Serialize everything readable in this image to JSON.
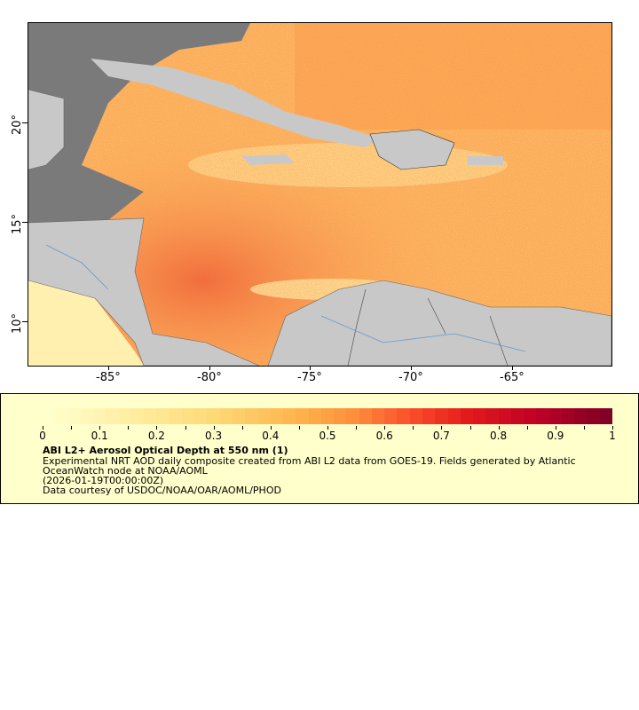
{
  "map": {
    "lon_ticks": [
      "-85°",
      "-80°",
      "-75°",
      "-70°",
      "-65°"
    ],
    "lat_ticks": [
      "20°",
      "15°",
      "10°"
    ],
    "colors": {
      "land": "#c8c8c8",
      "no_data": "#7a7a7a",
      "low": "#ffffcc",
      "high": "#800026"
    }
  },
  "legend": {
    "colorbar_labels": [
      "0",
      "0.1",
      "0.2",
      "0.3",
      "0.4",
      "0.5",
      "0.6",
      "0.7",
      "0.8",
      "0.9",
      "1"
    ],
    "colorbar_range": [
      0,
      1
    ],
    "title": "ABI L2+ Aerosol Optical Depth at 550 nm (1)",
    "line1": "Experimental NRT AOD daily composite created from ABI L2 data from GOES-19. Fields generated by Atlantic",
    "line2": "OceanWatch node at NOAA/AOML",
    "line3": "(2026-01-19T00:00:00Z)",
    "line4": "Data courtesy of USDOC/NOAA/OAR/AOML/PHOD"
  }
}
